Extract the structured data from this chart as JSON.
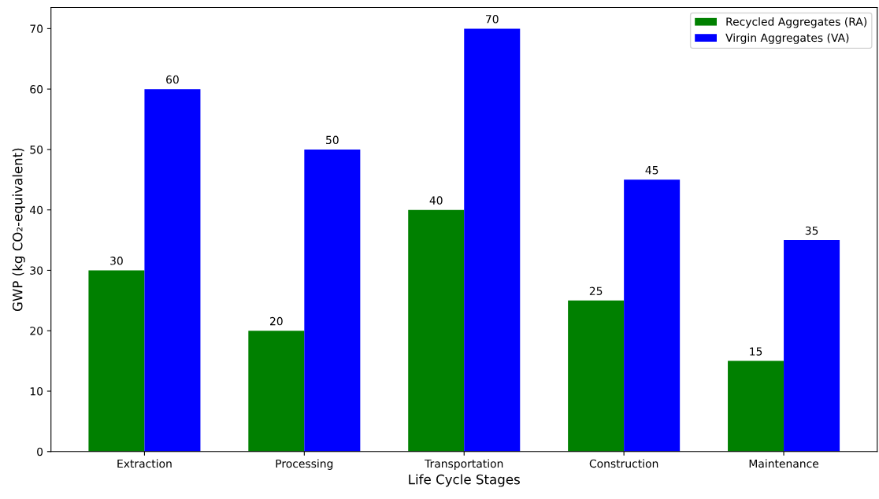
{
  "chart_data": {
    "type": "bar",
    "xlabel": "Life Cycle Stages",
    "ylabel": "GWP (kg CO₂-equivalent)",
    "categories": [
      "Extraction",
      "Processing",
      "Transportation",
      "Construction",
      "Maintenance"
    ],
    "series": [
      {
        "name": "Recycled Aggregates (RA)",
        "color": "#008000",
        "values": [
          30,
          20,
          40,
          25,
          15
        ]
      },
      {
        "name": "Virgin Aggregates (VA)",
        "color": "#0000ff",
        "values": [
          60,
          50,
          70,
          45,
          35
        ]
      }
    ],
    "ylim": [
      0,
      73.5
    ],
    "yticks": [
      0,
      10,
      20,
      30,
      40,
      50,
      60,
      70
    ],
    "data_labels": true,
    "legend": "top right",
    "grid": false
  }
}
